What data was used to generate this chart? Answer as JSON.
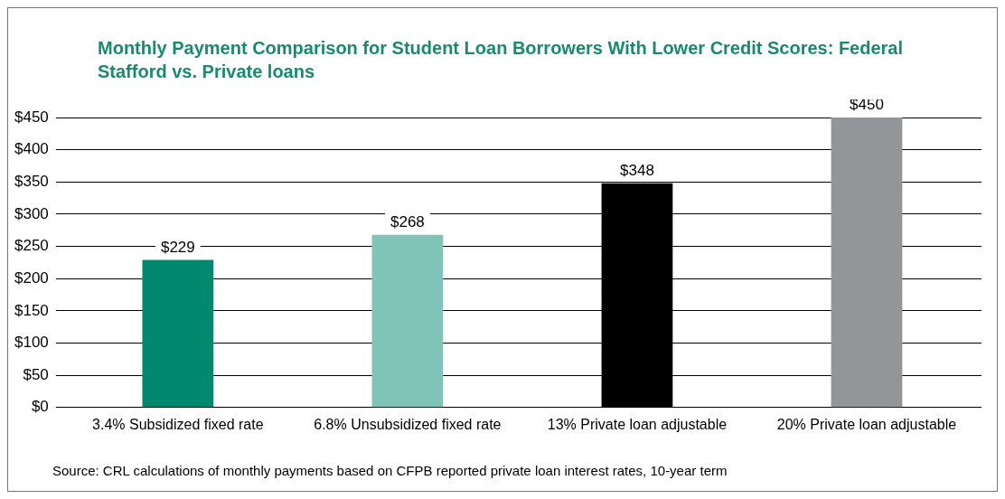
{
  "chart_data": {
    "type": "bar",
    "title": "Monthly Payment Comparison for Student Loan Borrowers With Lower Credit Scores: Federal Stafford vs. Private loans",
    "categories": [
      "3.4% Subsidized fixed rate",
      "6.8% Unsubsidized fixed rate",
      "13% Private loan adjustable",
      "20% Private loan adjustable"
    ],
    "values": [
      229,
      268,
      348,
      450
    ],
    "colors": [
      "#00896f",
      "#80c4b7",
      "#000000",
      "#939598"
    ],
    "ylim": [
      0,
      450
    ],
    "yticks": [
      {
        "value": 0,
        "label": "$0"
      },
      {
        "value": 50,
        "label": "$50"
      },
      {
        "value": 100,
        "label": "$100"
      },
      {
        "value": 150,
        "label": "$150"
      },
      {
        "value": 200,
        "label": "$200"
      },
      {
        "value": 250,
        "label": "$250"
      },
      {
        "value": 300,
        "label": "$300"
      },
      {
        "value": 350,
        "label": "$350"
      },
      {
        "value": 400,
        "label": "$400"
      },
      {
        "value": 450,
        "label": "$450"
      }
    ],
    "value_labels": [
      "$229",
      "$268",
      "$348",
      "$450"
    ],
    "grid": "y",
    "legend": false,
    "annotations": [
      "Source: CRL calculations of monthly payments based on CFPB reported private loan interest rates, 10-year term"
    ]
  }
}
